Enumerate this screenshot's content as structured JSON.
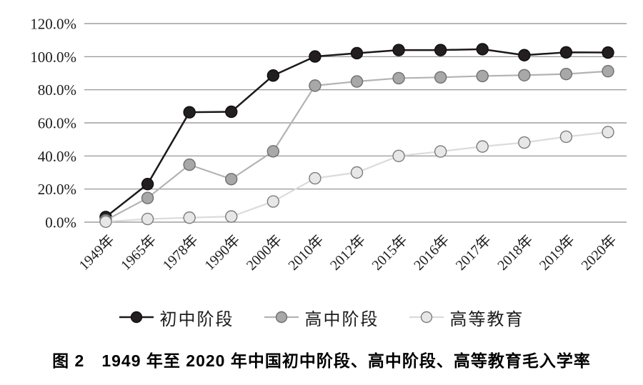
{
  "figure": {
    "caption": "图 2　1949 年至 2020 年中国初中阶段、高中阶段、高等教育毛入学率"
  },
  "chart_data": {
    "type": "line",
    "title": "",
    "xlabel": "",
    "ylabel": "",
    "ylim": [
      0,
      120
    ],
    "ytick_step": 20,
    "ytick_labels": [
      "0.0%",
      "20.0%",
      "40.0%",
      "60.0%",
      "80.0%",
      "100.0%",
      "120.0%"
    ],
    "grid": true,
    "legend_position": "bottom",
    "categories": [
      "1949年",
      "1965年",
      "1978年",
      "1990年",
      "2000年",
      "2010年",
      "2012年",
      "2015年",
      "2016年",
      "2017年",
      "2018年",
      "2019年",
      "2020年"
    ],
    "series": [
      {
        "id": "junior-secondary",
        "name": "初中阶段",
        "values": [
          3.1,
          23.0,
          66.4,
          66.7,
          88.6,
          100.1,
          102.1,
          104.0,
          104.0,
          104.5,
          100.9,
          102.6,
          102.5
        ],
        "line_color": "#1d181a",
        "line_width": 2.5,
        "marker_fill": "#231f20",
        "marker_stroke": "#0f0d0e",
        "marker_radius": 8
      },
      {
        "id": "senior-secondary",
        "name": "高中阶段",
        "values": [
          1.1,
          14.6,
          34.7,
          26.0,
          42.8,
          82.5,
          85.0,
          87.0,
          87.5,
          88.3,
          88.8,
          89.5,
          91.2
        ],
        "line_color": "#b3b3b3",
        "line_width": 2.2,
        "marker_fill": "#a8a8a8",
        "marker_stroke": "#6f6f6f",
        "marker_radius": 8
      },
      {
        "id": "higher-education",
        "name": "高等教育",
        "values": [
          0.26,
          1.9,
          2.7,
          3.4,
          12.5,
          26.5,
          30.0,
          40.0,
          42.7,
          45.7,
          48.1,
          51.6,
          54.4
        ],
        "line_color": "#dbdbdb",
        "line_width": 2.2,
        "marker_fill": "#e7e7e7",
        "marker_stroke": "#7d7d7d",
        "marker_radius": 8
      }
    ],
    "grid_color": "#8c8c8c"
  }
}
